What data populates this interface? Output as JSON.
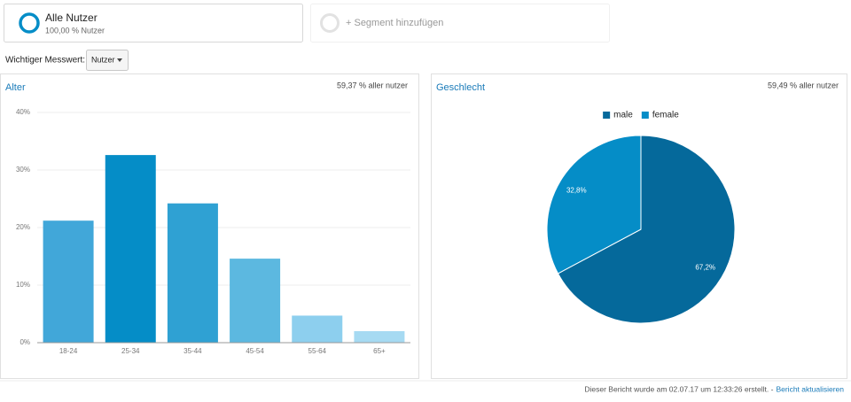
{
  "segments": [
    {
      "title": "Alle Nutzer",
      "subtitle": "100,00 % Nutzer"
    },
    {
      "title": "+ Segment hinzufügen"
    }
  ],
  "metric": {
    "label": "Wichtiger Messwert:",
    "value": "Nutzer"
  },
  "chart_data": [
    {
      "type": "bar",
      "title": "Alter",
      "subtitle": "59,37 % aller nutzer",
      "categories": [
        "18-24",
        "25-34",
        "35-44",
        "45-54",
        "55-64",
        "65+"
      ],
      "values": [
        21.2,
        32.6,
        24.2,
        14.6,
        4.7,
        2.0
      ],
      "colors": [
        "#41a7d9",
        "#058dc7",
        "#2fa1d3",
        "#5cb8e0",
        "#8dcfee",
        "#a6daf2"
      ],
      "ylim": [
        0,
        40
      ],
      "yticks": [
        {
          "value": 0,
          "label": "0%"
        },
        {
          "value": 10,
          "label": "10%"
        },
        {
          "value": 20,
          "label": "20%"
        },
        {
          "value": 30,
          "label": "30%"
        },
        {
          "value": 40,
          "label": "40%"
        }
      ],
      "grid": true
    },
    {
      "type": "pie",
      "title": "Geschlecht",
      "subtitle": "59,49 % aller nutzer",
      "categories": [
        "male",
        "female"
      ],
      "values": [
        67.2,
        32.8
      ],
      "value_labels": [
        "67,2%",
        "32,8%"
      ],
      "colors": [
        "#05699b",
        "#058dc7"
      ],
      "legend": "top"
    }
  ],
  "footer": {
    "text": "Dieser Bericht wurde am 02.07.17 um 12:33:26 erstellt. -",
    "link": "Bericht aktualisieren"
  }
}
